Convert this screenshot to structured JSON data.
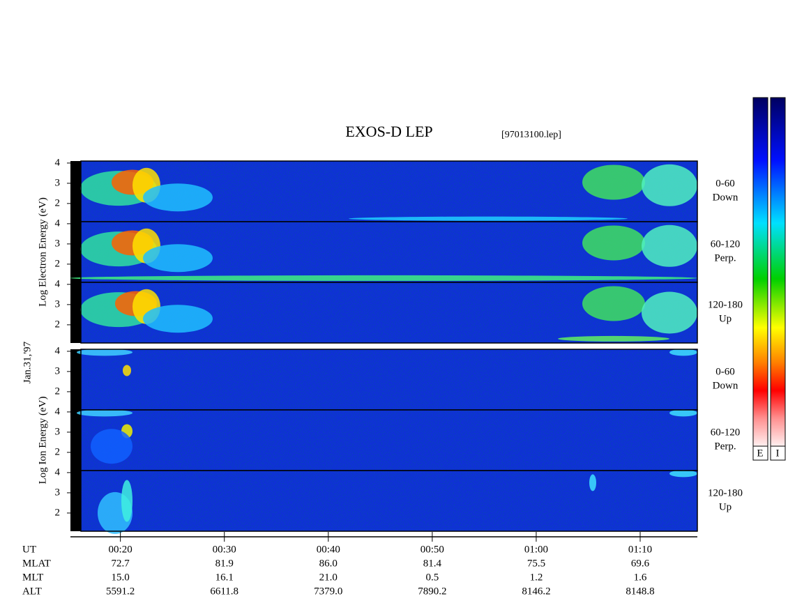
{
  "chart_data": {
    "type": "spectrogram",
    "title": "EXOS-D LEP",
    "subtitle": "[97013100.lep]",
    "date_label": "Jan.31,'97",
    "groups": [
      {
        "axis_label": "Log Electron Energy (eV)",
        "panels": [
          "0-60 Down",
          "60-120 Perp.",
          "120-180 Up"
        ]
      },
      {
        "axis_label": "Log Ion Energy (eV)",
        "panels": [
          "0-60 Down",
          "60-120 Perp.",
          "120-180 Up"
        ]
      }
    ],
    "ylim": [
      1.1,
      4.1
    ],
    "yticks": [
      2,
      3,
      4
    ],
    "xlim": [
      16.2,
      75.5
    ],
    "xticks": [
      {
        "value": 20,
        "label": "00:20"
      },
      {
        "value": 30,
        "label": "00:30"
      },
      {
        "value": 40,
        "label": "00:40"
      },
      {
        "value": 50,
        "label": "00:50"
      },
      {
        "value": 60,
        "label": "01:00"
      },
      {
        "value": 70,
        "label": "01:10"
      }
    ],
    "x_label": "UT",
    "ephemeris": [
      {
        "name": "MLAT",
        "values": [
          "72.7",
          "81.9",
          "86.0",
          "81.4",
          "75.5",
          "69.6"
        ]
      },
      {
        "name": "MLT",
        "values": [
          "15.0",
          "16.1",
          "21.0",
          "0.5",
          "1.2",
          "1.6"
        ]
      },
      {
        "name": "ALT",
        "values": [
          "5591.2",
          "6611.8",
          "7379.0",
          "7890.2",
          "8146.2",
          "8148.8"
        ]
      }
    ],
    "colorbars": [
      "E",
      "I"
    ]
  }
}
